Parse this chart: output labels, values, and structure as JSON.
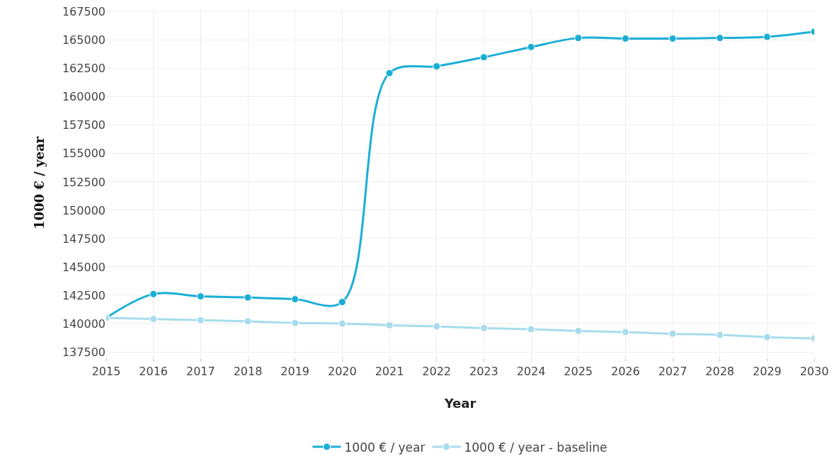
{
  "chart_data": {
    "type": "line",
    "xlabel": "Year",
    "ylabel": "1000 € / year",
    "x": [
      2015,
      2016,
      2017,
      2018,
      2019,
      2020,
      2021,
      2022,
      2023,
      2024,
      2025,
      2026,
      2027,
      2028,
      2029,
      2030
    ],
    "series": [
      {
        "name": "1000 € / year",
        "color": "#1aaed6",
        "values": [
          140500,
          142600,
          142400,
          142300,
          142150,
          141900,
          162100,
          162700,
          163500,
          164400,
          165200,
          165150,
          165150,
          165200,
          165300,
          165750
        ]
      },
      {
        "name": "1000 € / year - baseline",
        "color": "#a8dcec",
        "values": [
          140500,
          140400,
          140300,
          140200,
          140050,
          140000,
          139850,
          139750,
          139600,
          139500,
          139350,
          139250,
          139100,
          139000,
          138800,
          138700
        ]
      }
    ],
    "xlim": [
      2015,
      2030
    ],
    "xticks": [
      2015,
      2016,
      2017,
      2018,
      2019,
      2020,
      2021,
      2022,
      2023,
      2024,
      2025,
      2026,
      2027,
      2028,
      2029,
      2030
    ],
    "ylim": [
      137000,
      167800
    ],
    "yticks": [
      137500,
      140000,
      142500,
      145000,
      147500,
      150000,
      152500,
      155000,
      157500,
      160000,
      162500,
      165000,
      167500
    ],
    "grid": true,
    "legend": "bottom",
    "marker": "circle",
    "line_style": "solid"
  }
}
